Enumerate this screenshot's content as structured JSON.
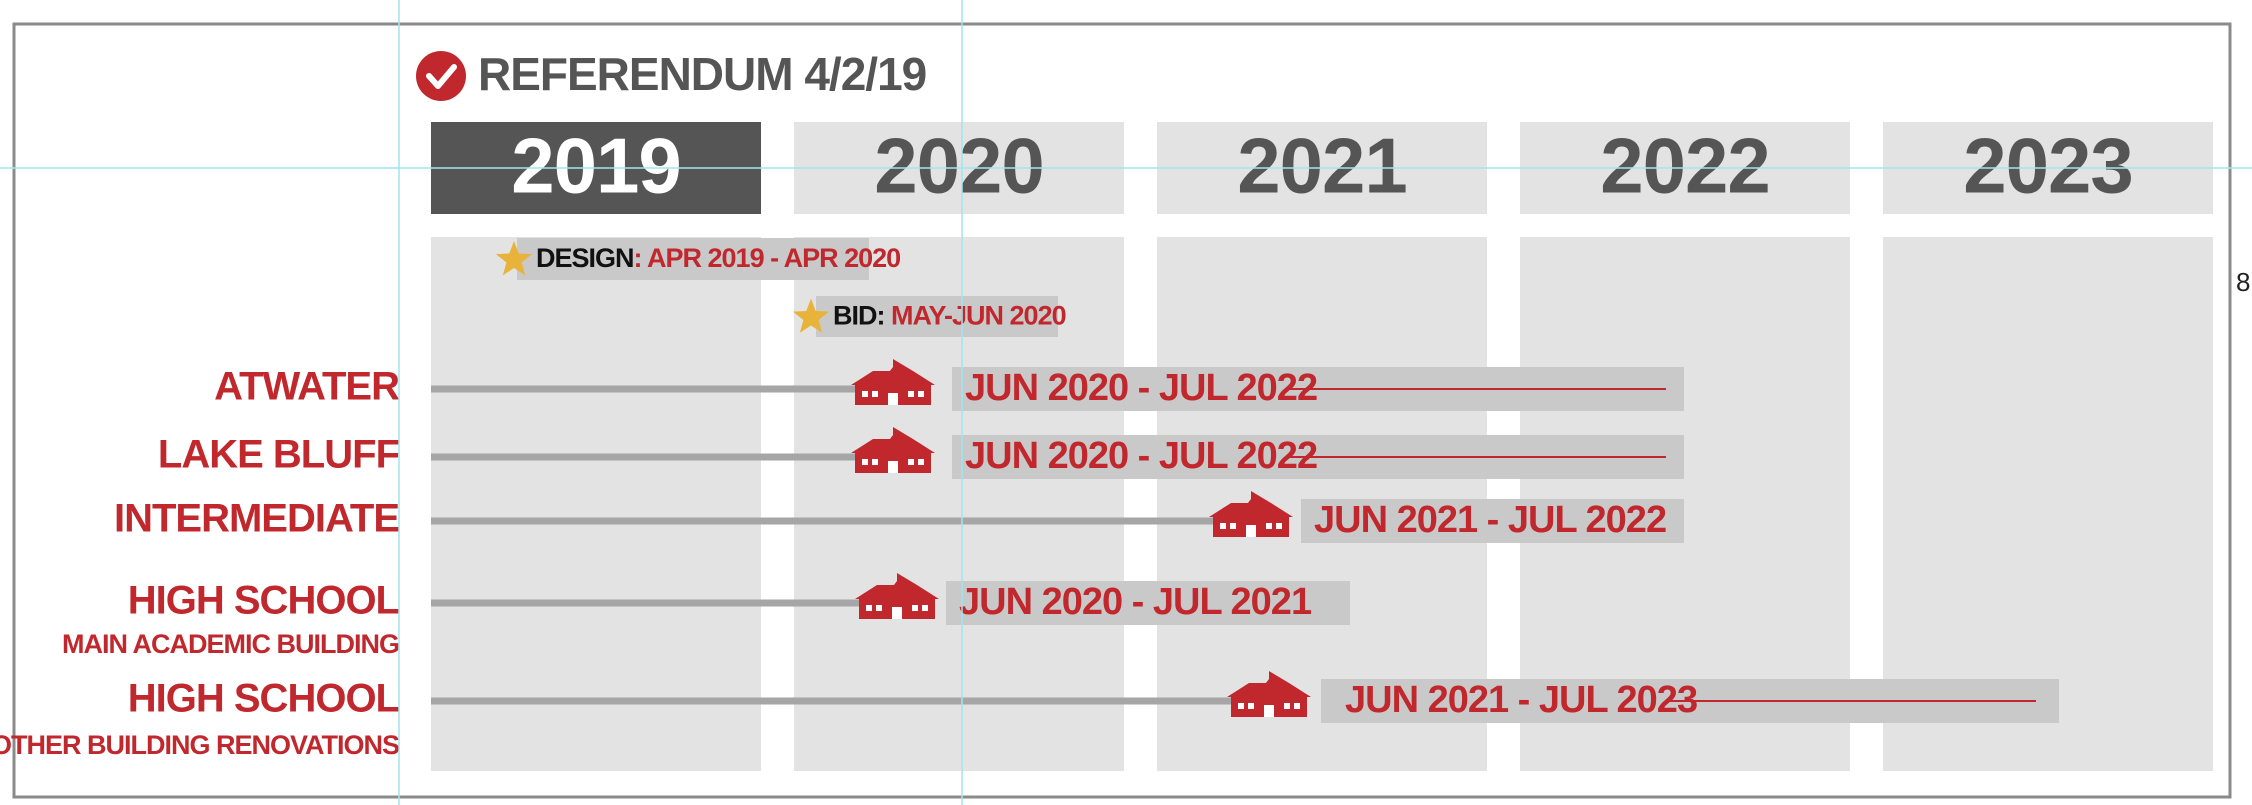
{
  "title": "REFERENDUM 4/2/19",
  "years": [
    "2019",
    "2020",
    "2021",
    "2022",
    "2023"
  ],
  "milestones": [
    {
      "label": "DESIGN",
      "dates": ": APR 2019 - APR 2020"
    },
    {
      "label": "BID:",
      "dates": " MAY-JUN 2020"
    }
  ],
  "projects": [
    {
      "name": "ATWATER",
      "dates": "JUN 2020 - JUL 2022"
    },
    {
      "name": "LAKE BLUFF",
      "dates": "JUN 2020 - JUL 2022"
    },
    {
      "name": "INTERMEDIATE",
      "dates": "JUN 2021 - JUL 2022"
    },
    {
      "name": "HIGH SCHOOL",
      "subtitle": "MAIN ACADEMIC BUILDING",
      "dates": "JUN 2020 - JUL 2021"
    },
    {
      "name": "HIGH SCHOOL",
      "subtitle": "OTHER BUILDING RENOVATIONS",
      "dates": "JUN 2021 - JUL 2023"
    }
  ],
  "page_number": "8"
}
